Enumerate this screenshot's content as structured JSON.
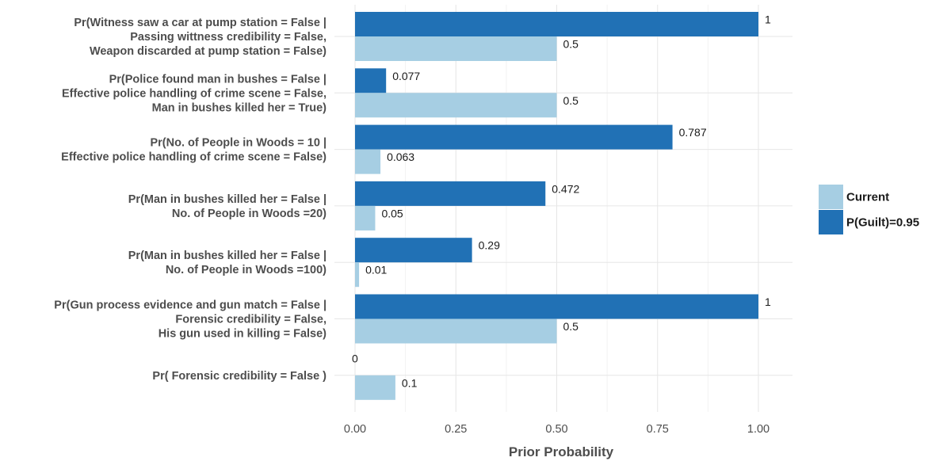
{
  "chart_data": {
    "type": "bar",
    "orientation": "horizontal",
    "categories": [
      [
        "Pr(Witness saw a car at pump station = False |",
        "Passing wittness credibility = False,",
        "Weapon discarded at pump station = False)"
      ],
      [
        "Pr(Police found man in bushes = False |",
        "Effective police handling of crime scene = False,",
        "Man in bushes killed her = True)"
      ],
      [
        "Pr(No. of People in Woods = 10 |",
        "Effective police handling of crime scene = False)"
      ],
      [
        "Pr(Man in bushes killed her = False |",
        "No. of People in Woods =20)"
      ],
      [
        "Pr(Man in bushes killed her = False |",
        "No. of People in Woods =100)"
      ],
      [
        "Pr(Gun process evidence and gun match = False |",
        "Forensic credibility = False,",
        "His gun used in killing = False)"
      ],
      [
        "Pr( Forensic credibility = False )"
      ]
    ],
    "series": [
      {
        "name": "P(Guilt)=0.95",
        "color": "#2171b5",
        "values": [
          1,
          0.077,
          0.787,
          0.472,
          0.29,
          1,
          0
        ],
        "labels": [
          "1",
          "0.077",
          "0.787",
          "0.472",
          "0.29",
          "1",
          "0"
        ]
      },
      {
        "name": "Current",
        "color": "#a6cee3",
        "values": [
          0.5,
          0.5,
          0.063,
          0.05,
          0.01,
          0.5,
          0.1
        ],
        "labels": [
          "0.5",
          "0.5",
          "0.063",
          "0.05",
          "0.01",
          "0.5",
          "0.1"
        ]
      }
    ],
    "xlabel": "Prior Probability",
    "ylabel": "",
    "xlim": [
      0,
      1.07
    ],
    "xticks": [
      0,
      0.25,
      0.5,
      0.75,
      1.0
    ],
    "xtick_labels": [
      "0.00",
      "0.25",
      "0.50",
      "0.75",
      "1.00"
    ],
    "grid": true,
    "legend": {
      "position": "right",
      "entries": [
        "Current",
        "P(Guilt)=0.95"
      ]
    }
  }
}
